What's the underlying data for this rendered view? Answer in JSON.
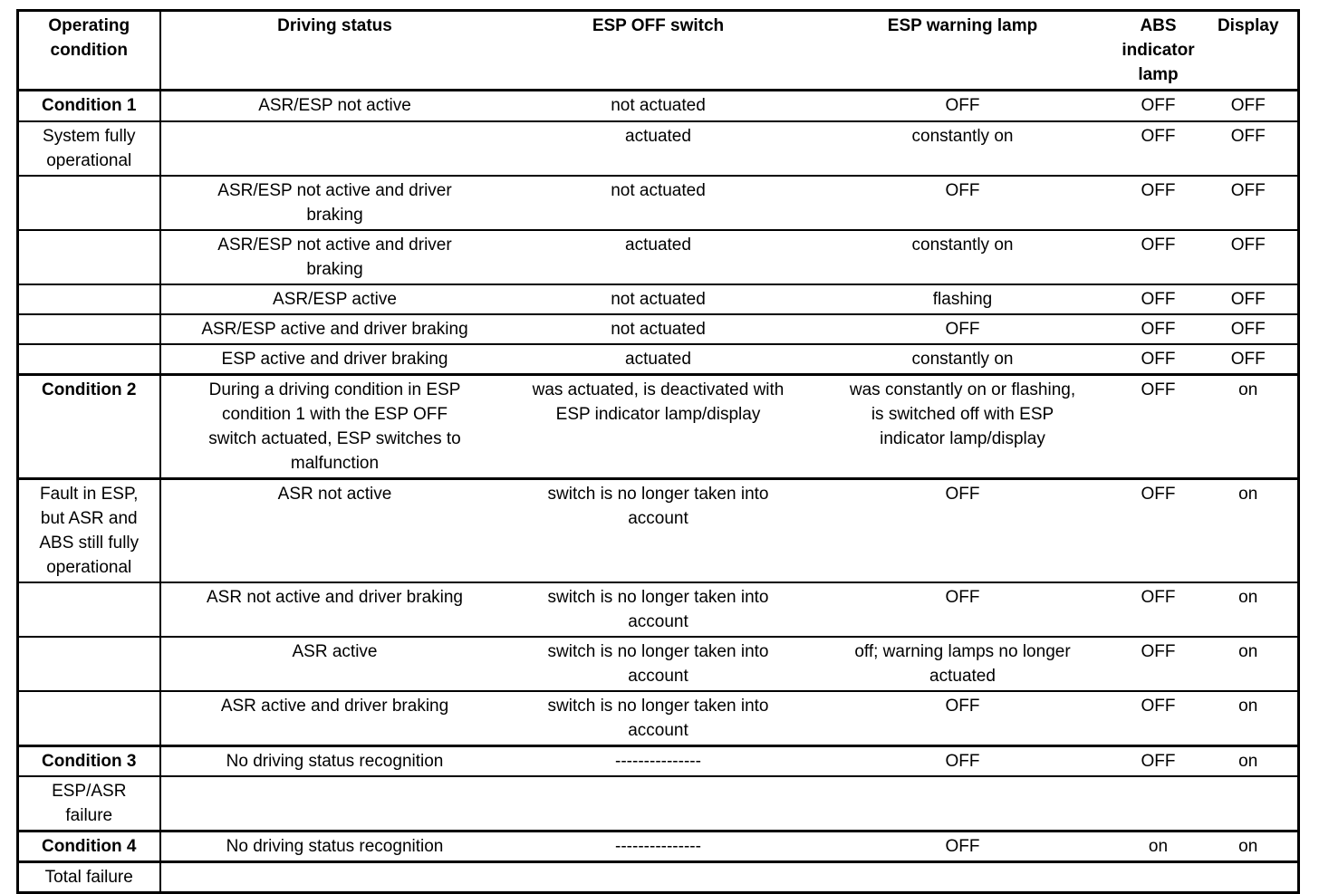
{
  "page": {
    "background_color": "#ffffff",
    "border_color": "#000000",
    "text_color": "#000000"
  },
  "table": {
    "headers": [
      "Operating\ncondition",
      "Driving status",
      "ESP OFF switch",
      "ESP warning lamp",
      "ABS\nindicator\nlamp",
      "Display"
    ],
    "rows": [
      {
        "condition_bold": true,
        "cells": [
          "Condition 1",
          "ASR/ESP not active",
          "not actuated",
          "OFF",
          "OFF",
          "OFF"
        ]
      },
      {
        "cells": [
          "System fully\noperational",
          "",
          "actuated",
          "constantly on",
          "OFF",
          "OFF"
        ]
      },
      {
        "cells": [
          "",
          "ASR/ESP not active and driver\nbraking",
          "not actuated",
          "OFF",
          "OFF",
          "OFF"
        ]
      },
      {
        "cells": [
          "",
          "ASR/ESP not active and driver\nbraking",
          "actuated",
          "constantly on",
          "OFF",
          "OFF"
        ]
      },
      {
        "cells": [
          "",
          "ASR/ESP active",
          "not actuated",
          "flashing",
          "OFF",
          "OFF"
        ]
      },
      {
        "cells": [
          "",
          "ASR/ESP active and driver braking",
          "not actuated",
          "OFF",
          "OFF",
          "OFF"
        ]
      },
      {
        "thick_bottom": true,
        "cells": [
          "",
          "ESP active and driver braking",
          "actuated",
          "constantly on",
          "OFF",
          "OFF"
        ]
      },
      {
        "condition_bold": true,
        "thick_bottom": true,
        "cells": [
          "Condition 2",
          "During a driving condition in ESP\ncondition 1 with the ESP OFF\nswitch actuated, ESP switches to\nmalfunction",
          "was actuated, is deactivated with\nESP indicator lamp/display",
          "was constantly on or flashing,\nis switched off with ESP\nindicator lamp/display",
          "OFF",
          "on"
        ]
      },
      {
        "cells": [
          "Fault in ESP,\nbut ASR and\nABS still fully\noperational",
          "ASR not active",
          "switch is no longer taken into\naccount",
          "OFF",
          "OFF",
          "on"
        ]
      },
      {
        "cells": [
          "",
          "ASR not active and driver braking",
          "switch is no longer taken into\naccount",
          "OFF",
          "OFF",
          "on"
        ]
      },
      {
        "cells": [
          "",
          "ASR active",
          "switch is no longer taken into\naccount",
          "off; warning lamps no longer\nactuated",
          "OFF",
          "on"
        ]
      },
      {
        "thick_bottom": true,
        "cells": [
          "",
          "ASR active and driver braking",
          "switch is no longer taken into\naccount",
          "OFF",
          "OFF",
          "on"
        ]
      },
      {
        "condition_bold": true,
        "cells": [
          "Condition 3",
          "No driving status recognition",
          "---------------",
          "OFF",
          "OFF",
          "on"
        ]
      },
      {
        "thick_bottom": true,
        "cells": [
          "ESP/ASR\nfailure",
          "",
          "",
          "",
          "",
          ""
        ]
      },
      {
        "condition_bold": true,
        "thick_bottom": true,
        "cells": [
          "Condition 4",
          "No driving status recognition",
          "---------------",
          "OFF",
          "on",
          "on"
        ]
      },
      {
        "cells": [
          "Total failure",
          "",
          "",
          "",
          "",
          ""
        ]
      }
    ]
  }
}
